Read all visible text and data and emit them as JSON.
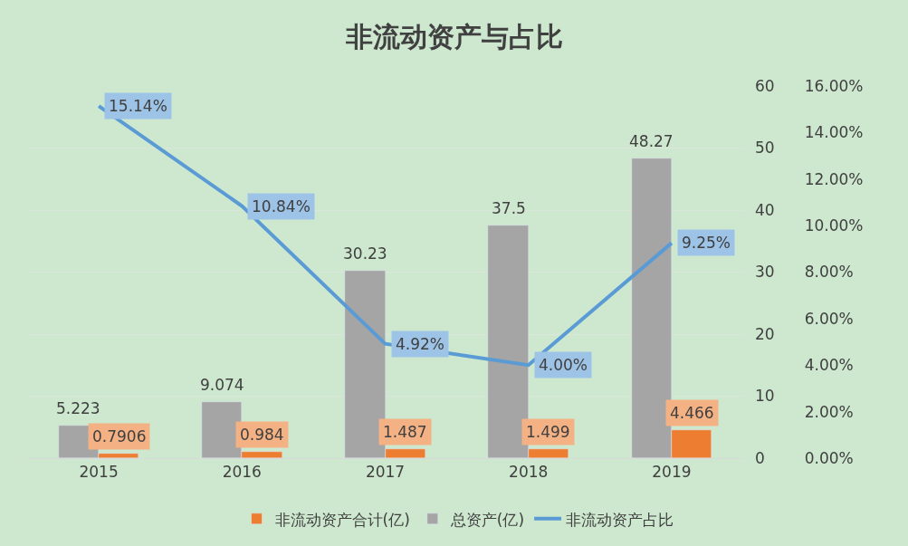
{
  "chart_data": {
    "type": "bar",
    "title": "非流动资产与占比",
    "categories": [
      "2015",
      "2016",
      "2017",
      "2018",
      "2019"
    ],
    "series": [
      {
        "name": "非流动资产合计(亿)",
        "color": "#ed7d31",
        "values": [
          0.7906,
          0.984,
          1.487,
          1.499,
          4.466
        ],
        "value_labels": [
          "0.7906",
          "0.984",
          "1.487",
          "1.499",
          "4.466"
        ]
      },
      {
        "name": "总资产(亿)",
        "color": "#a5a5a5",
        "values": [
          5.223,
          9.074,
          30.23,
          37.5,
          48.27
        ],
        "value_labels": [
          "5.223",
          "9.074",
          "30.23",
          "37.5",
          "48.27"
        ]
      },
      {
        "name": "非流动资产占比",
        "type": "line",
        "axis": "y2",
        "color": "#5b9bd5",
        "marker": "none",
        "values": [
          15.14,
          10.84,
          4.92,
          4.0,
          9.25
        ],
        "value_labels": [
          "15.14%",
          "10.84%",
          "4.92%",
          "4.00%",
          "9.25%"
        ]
      }
    ],
    "ylim": [
      0,
      60
    ],
    "yticks": [
      0,
      10,
      20,
      30,
      40,
      50,
      60
    ],
    "y2lim": [
      0,
      16
    ],
    "y2ticks": [
      {
        "value": 0,
        "label": "0.00%"
      },
      {
        "value": 2,
        "label": "2.00%"
      },
      {
        "value": 4,
        "label": "4.00%"
      },
      {
        "value": 6,
        "label": "6.00%"
      },
      {
        "value": 8,
        "label": "8.00%"
      },
      {
        "value": 10,
        "label": "10.00%"
      },
      {
        "value": 12,
        "label": "12.00%"
      },
      {
        "value": 14,
        "label": "14.00%"
      },
      {
        "value": 16,
        "label": "16.00%"
      }
    ],
    "grid": "y",
    "legend": "bottom"
  }
}
